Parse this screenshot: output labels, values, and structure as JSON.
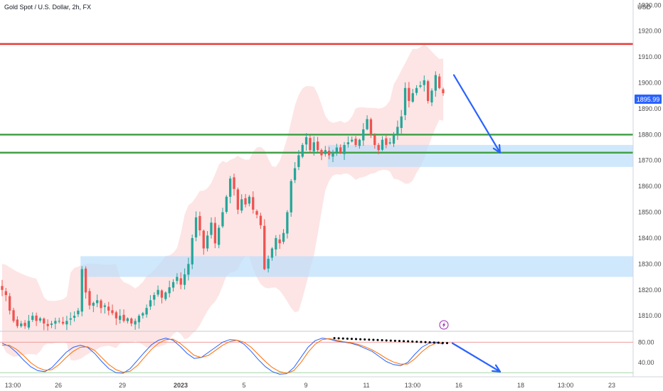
{
  "header": {
    "title": "Gold Spot / U.S. Dollar, 2h, FX",
    "currency": "USD"
  },
  "current_price": "1895.99",
  "colors": {
    "up": "#26a69a",
    "down": "#ef5350",
    "resistance": "#e53935",
    "support": "#43a047",
    "zone": "#bbdefb",
    "bands": "#fde0e0",
    "arrow": "#2962ff",
    "stoch_k": "#2962ff",
    "stoch_d": "#ff6d00",
    "price_tag": "#2962ff"
  },
  "flash_icon": "lightning-icon",
  "chart_data": [
    {
      "type": "candlestick",
      "title": "Gold Spot / U.S. Dollar, 2h, FX",
      "ylabel": "USD",
      "ylim": [
        1804,
        1932
      ],
      "y_ticks": [
        "1930.00",
        "1920.00",
        "1910.00",
        "1900.00",
        "1890.00",
        "1880.00",
        "1870.00",
        "1860.00",
        "1850.00",
        "1840.00",
        "1830.00",
        "1820.00",
        "1810.00"
      ],
      "x_ticks": [
        "13:00",
        "26",
        "29",
        "2023",
        "5",
        "9",
        "11",
        "13:00",
        "16",
        "18",
        "13:00",
        "23"
      ],
      "close_path": [
        1820,
        1818,
        1812,
        1808,
        1806,
        1807,
        1806,
        1808,
        1810,
        1808,
        1809,
        1807,
        1806,
        1807,
        1808,
        1808,
        1807,
        1808,
        1809,
        1810,
        1812,
        1828,
        1819,
        1814,
        1815,
        1816,
        1813,
        1814,
        1812,
        1811,
        1809,
        1810,
        1808,
        1809,
        1807,
        1808,
        1810,
        1811,
        1813,
        1816,
        1818,
        1820,
        1817,
        1819,
        1821,
        1823,
        1825,
        1822,
        1826,
        1830,
        1840,
        1848,
        1843,
        1836,
        1841,
        1846,
        1838,
        1844,
        1850,
        1856,
        1863,
        1859,
        1851,
        1855,
        1853,
        1856,
        1851,
        1849,
        1845,
        1828,
        1832,
        1836,
        1840,
        1838,
        1842,
        1850,
        1862,
        1867,
        1872,
        1876,
        1879,
        1874,
        1877,
        1874,
        1872,
        1874,
        1872,
        1873,
        1875,
        1873,
        1876,
        1877,
        1878,
        1876,
        1878,
        1882,
        1886,
        1880,
        1876,
        1874,
        1878,
        1876,
        1877,
        1880,
        1883,
        1887,
        1898,
        1893,
        1896,
        1898,
        1899,
        1901,
        1893,
        1897,
        1903,
        1898,
        1896
      ],
      "annotations": {
        "resistance_line": 1915,
        "support_lines": [
          1880,
          1873
        ],
        "demand_zones": [
          {
            "from": 1867.5,
            "to": 1876,
            "start_index": 86
          },
          {
            "from": 1825,
            "to": 1833,
            "start_index": 21
          }
        ],
        "forecast_arrow": {
          "from": 1903,
          "to": 1873
        }
      }
    },
    {
      "type": "line",
      "title": "",
      "ylim": [
        12,
        100
      ],
      "y_ticks": [
        "80.00",
        "40.00"
      ],
      "levels": [
        80,
        20
      ],
      "series": [
        {
          "values": [
            78,
            72,
            60,
            45,
            32,
            24,
            22,
            30,
            45,
            60,
            70,
            74,
            70,
            58,
            42,
            28,
            20,
            19,
            28,
            44,
            60,
            75,
            84,
            88,
            84,
            72,
            58,
            48,
            50,
            60,
            70,
            80,
            85,
            84,
            76,
            62,
            46,
            32,
            22,
            17,
            18,
            30,
            50,
            70,
            83,
            88,
            86,
            82,
            80,
            78,
            74,
            68,
            62,
            52,
            42,
            36,
            34,
            40,
            56,
            70,
            78,
            80,
            76
          ]
        },
        {
          "values": [
            74,
            74,
            66,
            54,
            40,
            30,
            25,
            26,
            36,
            50,
            62,
            70,
            71,
            64,
            50,
            36,
            26,
            21,
            23,
            34,
            50,
            66,
            78,
            85,
            86,
            78,
            66,
            54,
            50,
            54,
            64,
            74,
            81,
            84,
            80,
            70,
            56,
            42,
            30,
            22,
            19,
            24,
            40,
            60,
            76,
            85,
            87,
            84,
            81,
            79,
            76,
            71,
            65,
            57,
            48,
            41,
            37,
            37,
            47,
            61,
            72,
            78,
            78
          ]
        }
      ],
      "annotations": {
        "divergence_line": {
          "from": 88,
          "to": 78
        },
        "forecast_arrow": {
          "from": 78,
          "to": 22
        }
      }
    }
  ]
}
